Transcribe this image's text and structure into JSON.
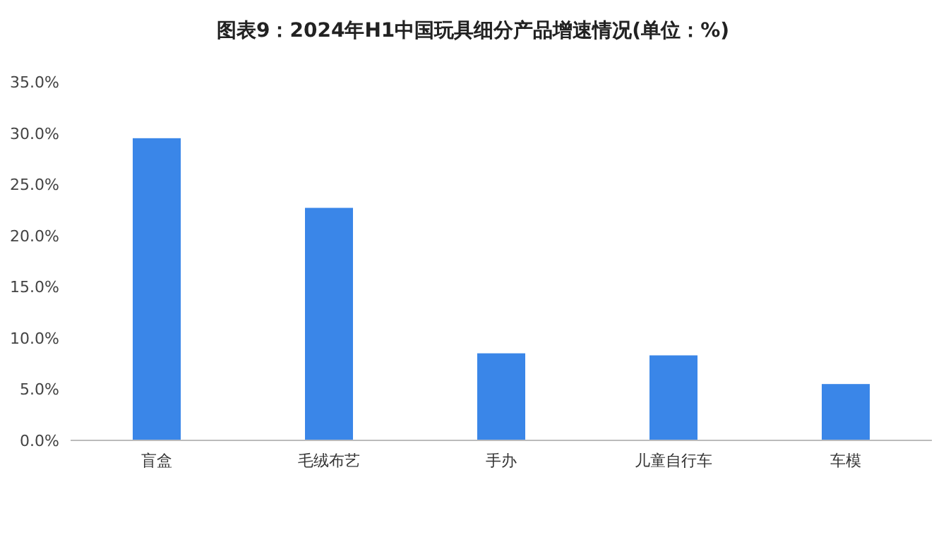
{
  "chart_data": {
    "type": "bar",
    "title": "图表9：2024年H1中国玩具细分产品增速情况(单位：%)",
    "categories": [
      "盲盒",
      "毛绒布艺",
      "手办",
      "儿童自行车",
      "车模"
    ],
    "values": [
      29.5,
      22.7,
      8.5,
      8.3,
      5.5
    ],
    "color": "#3a86e8",
    "ylim": [
      0,
      35
    ],
    "yticks": [
      {
        "value": 0,
        "label": "0.0%"
      },
      {
        "value": 5,
        "label": "5.0%"
      },
      {
        "value": 10,
        "label": "10.0%"
      },
      {
        "value": 15,
        "label": "15.0%"
      },
      {
        "value": 20,
        "label": "20.0%"
      },
      {
        "value": 25,
        "label": "25.0%"
      },
      {
        "value": 30,
        "label": "30.0%"
      },
      {
        "value": 35,
        "label": "35.0%"
      }
    ]
  }
}
